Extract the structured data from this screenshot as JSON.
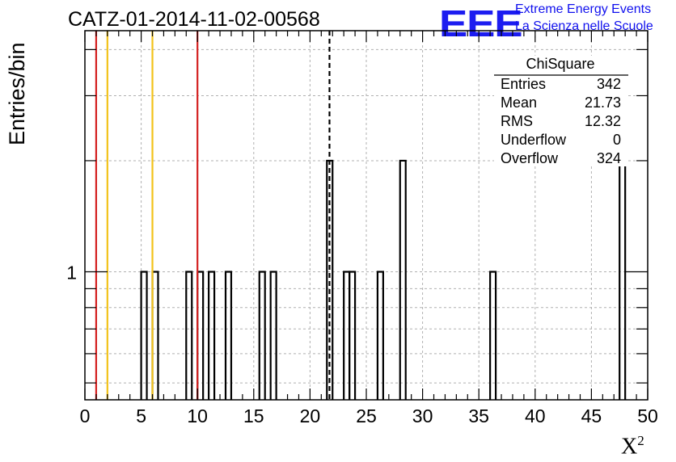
{
  "title": "CATZ-01-2014-11-02-00568",
  "logo": {
    "mark": "EEE",
    "line1": "Extreme Energy Events",
    "line2": "La Scienza nelle Scuole",
    "color": "#1c1cf0"
  },
  "chart_data": {
    "type": "bar",
    "style": "step-histogram",
    "xlabel": "X",
    "xlabel_superscript": "2",
    "ylabel": "Entries/bin",
    "xlim": [
      0,
      50
    ],
    "ylim_log": [
      0.45,
      4.5
    ],
    "y_scale": "log",
    "grid": true,
    "bin_width": 0.5,
    "x_ticks": [
      "0",
      "5",
      "10",
      "15",
      "20",
      "25",
      "30",
      "35",
      "40",
      "45",
      "50"
    ],
    "y_ticks": [
      "1"
    ],
    "bins": [
      {
        "x": 5.0,
        "value": 1
      },
      {
        "x": 6.0,
        "value": 1
      },
      {
        "x": 9.0,
        "value": 1
      },
      {
        "x": 10.0,
        "value": 1
      },
      {
        "x": 11.0,
        "value": 1
      },
      {
        "x": 12.5,
        "value": 1
      },
      {
        "x": 15.5,
        "value": 1
      },
      {
        "x": 16.5,
        "value": 1
      },
      {
        "x": 21.5,
        "value": 2
      },
      {
        "x": 23.0,
        "value": 1
      },
      {
        "x": 23.5,
        "value": 1
      },
      {
        "x": 26.0,
        "value": 1
      },
      {
        "x": 28.0,
        "value": 2
      },
      {
        "x": 36.0,
        "value": 1
      },
      {
        "x": 47.5,
        "value": 2
      }
    ],
    "vertical_lines": [
      {
        "x": 1.0,
        "color": "#d42020",
        "style": "solid"
      },
      {
        "x": 2.0,
        "color": "#f2c21a",
        "style": "solid"
      },
      {
        "x": 6.0,
        "color": "#f2c21a",
        "style": "solid"
      },
      {
        "x": 10.0,
        "color": "#d42020",
        "style": "solid"
      },
      {
        "x": 21.73,
        "color": "#000000",
        "style": "dashed"
      }
    ],
    "stats_box": {
      "title": "ChiSquare",
      "rows": [
        {
          "label": "Entries",
          "value": "342"
        },
        {
          "label": "Mean",
          "value": "21.73"
        },
        {
          "label": "RMS",
          "value": "12.32"
        },
        {
          "label": "Underflow",
          "value": "0"
        },
        {
          "label": "Overflow",
          "value": "324"
        }
      ]
    }
  }
}
